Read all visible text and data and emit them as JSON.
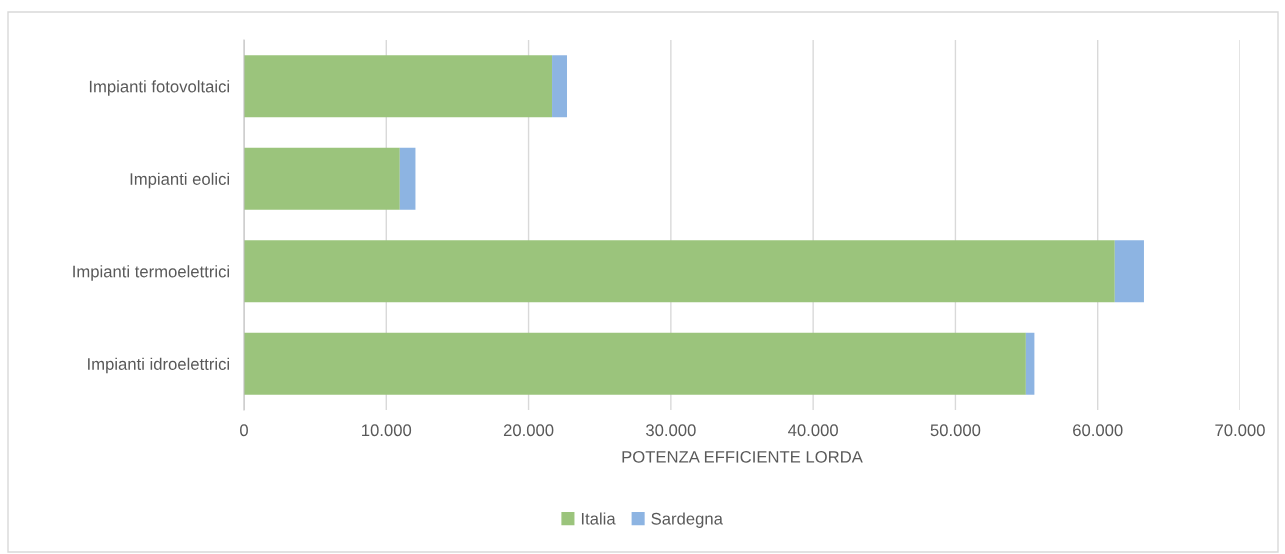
{
  "chart_data": {
    "type": "bar",
    "orientation": "horizontal",
    "stacked": true,
    "xlabel": "POTENZA EFFICIENTE LORDA",
    "categories": [
      "Impianti fotovoltaici",
      "Impianti eolici",
      "Impianti termoelettrici",
      "Impianti idroelettrici"
    ],
    "series": [
      {
        "name": "Italia",
        "color": "#9bc47c",
        "values": [
          21650,
          10950,
          61200,
          54950
        ]
      },
      {
        "name": "Sardegna",
        "color": "#8db4e2",
        "values": [
          1050,
          1100,
          2050,
          600
        ]
      }
    ],
    "xlim": [
      0,
      70000
    ],
    "xticks": [
      0,
      {
        "value": 10000,
        "label": "10.000"
      },
      {
        "value": 20000,
        "label": "20.000"
      },
      {
        "value": 30000,
        "label": "30.000"
      },
      {
        "value": 40000,
        "label": "40.000"
      },
      {
        "value": 50000,
        "label": "50.000"
      },
      {
        "value": 60000,
        "label": "60.000"
      },
      {
        "value": 70000,
        "label": "70.000"
      }
    ],
    "grid": "x",
    "legend": "bottom"
  }
}
